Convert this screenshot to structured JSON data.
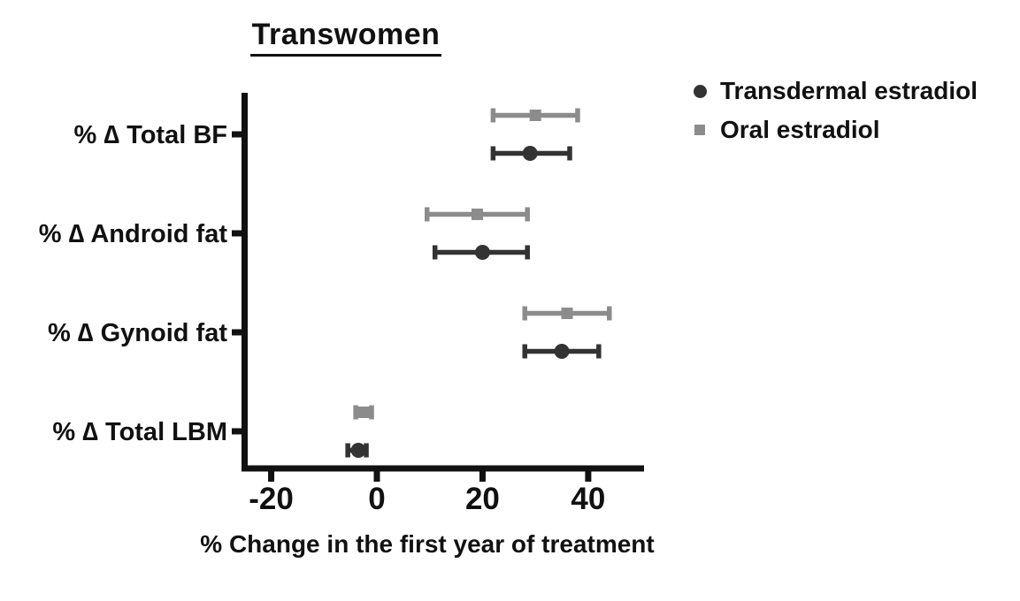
{
  "chart_data": {
    "type": "scatter",
    "subtype": "horizontal-point-estimate-with-error-bars",
    "title": "Transwomen",
    "xlabel": "% Change in the first year of treatment",
    "ylabel": "",
    "categories": [
      "% ∆ Total BF",
      "% ∆ Android fat",
      "% ∆ Gynoid fat",
      "% ∆ Total LBM"
    ],
    "x_ticks": [
      -20,
      0,
      20,
      40
    ],
    "xlim": [
      -26,
      51
    ],
    "grid": false,
    "legend_position": "top-right",
    "axis_color": "#111111",
    "series": [
      {
        "name": "Transdermal estradiol",
        "marker": "circle",
        "color": "#333333",
        "values": [
          29,
          20,
          35,
          -3.5
        ],
        "ci_low": [
          22,
          11,
          28,
          -5.5
        ],
        "ci_high": [
          36.5,
          28.5,
          42,
          -2
        ]
      },
      {
        "name": "Oral estradiol",
        "marker": "square",
        "color": "#8c8c8c",
        "values": [
          30,
          19,
          36,
          -2.5
        ],
        "ci_low": [
          22,
          9.5,
          28,
          -4
        ],
        "ci_high": [
          38,
          28.5,
          44,
          -1
        ]
      }
    ]
  }
}
